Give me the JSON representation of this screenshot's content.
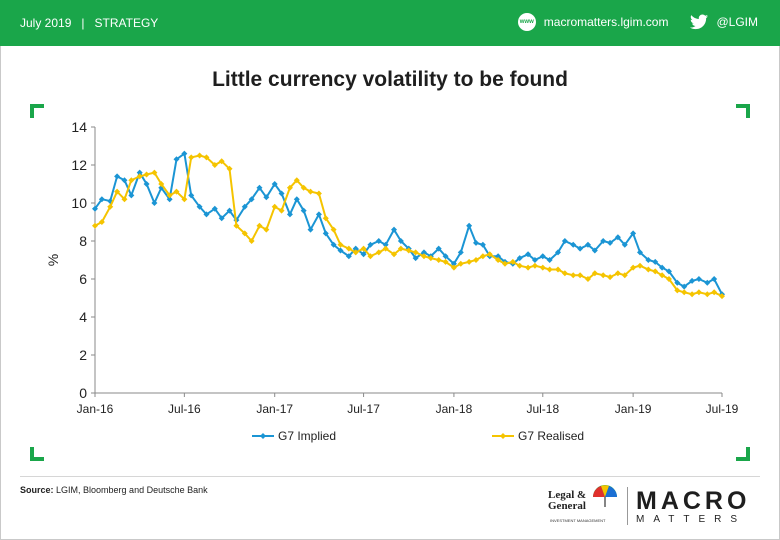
{
  "header": {
    "date": "July 2019",
    "section": "STRATEGY",
    "website": "macromatters.lgim.com",
    "twitter": "@LGIM",
    "www_icon_text": "www",
    "color": "#1aa64a"
  },
  "footer": {
    "source_label": "Source:",
    "source_text": "LGIM, Bloomberg and Deutsche Bank",
    "lg_line1": "Legal &",
    "lg_line2": "General",
    "lg_sub": "INVESTMENT MANAGEMENT",
    "brand_macro": "MACRO",
    "brand_matters": "MATTERS"
  },
  "chart_data": {
    "type": "line",
    "title": "Little currency volatility to be found",
    "xlabel": "",
    "ylabel": "%",
    "ylim": [
      0,
      14
    ],
    "yticks": [
      0,
      2,
      4,
      6,
      8,
      10,
      12,
      14
    ],
    "xticks": [
      "Jan-16",
      "Jul-16",
      "Jan-17",
      "Jul-17",
      "Jan-18",
      "Jul-18",
      "Jan-19",
      "Jul-19"
    ],
    "xrange": [
      "2016-01",
      "2019-07"
    ],
    "grid": false,
    "legend_position": "bottom",
    "series": [
      {
        "name": "G7 Implied",
        "color": "#1b95d4",
        "points": [
          [
            "2016-01-01",
            9.7
          ],
          [
            "2016-01-15",
            10.2
          ],
          [
            "2016-02-01",
            10.1
          ],
          [
            "2016-02-15",
            11.4
          ],
          [
            "2016-03-01",
            11.2
          ],
          [
            "2016-03-15",
            10.4
          ],
          [
            "2016-04-01",
            11.6
          ],
          [
            "2016-04-15",
            11.0
          ],
          [
            "2016-05-01",
            10.0
          ],
          [
            "2016-05-15",
            10.8
          ],
          [
            "2016-06-01",
            10.2
          ],
          [
            "2016-06-15",
            12.3
          ],
          [
            "2016-07-01",
            12.6
          ],
          [
            "2016-07-15",
            10.4
          ],
          [
            "2016-08-01",
            9.8
          ],
          [
            "2016-08-15",
            9.4
          ],
          [
            "2016-09-01",
            9.7
          ],
          [
            "2016-09-15",
            9.2
          ],
          [
            "2016-10-01",
            9.6
          ],
          [
            "2016-10-15",
            9.1
          ],
          [
            "2016-11-01",
            9.8
          ],
          [
            "2016-11-15",
            10.2
          ],
          [
            "2016-12-01",
            10.8
          ],
          [
            "2016-12-15",
            10.3
          ],
          [
            "2017-01-01",
            11.0
          ],
          [
            "2017-01-15",
            10.5
          ],
          [
            "2017-02-01",
            9.4
          ],
          [
            "2017-02-15",
            10.2
          ],
          [
            "2017-03-01",
            9.6
          ],
          [
            "2017-03-15",
            8.6
          ],
          [
            "2017-04-01",
            9.4
          ],
          [
            "2017-04-15",
            8.4
          ],
          [
            "2017-05-01",
            7.8
          ],
          [
            "2017-05-15",
            7.5
          ],
          [
            "2017-06-01",
            7.2
          ],
          [
            "2017-06-15",
            7.6
          ],
          [
            "2017-07-01",
            7.3
          ],
          [
            "2017-07-15",
            7.8
          ],
          [
            "2017-08-01",
            8.0
          ],
          [
            "2017-08-15",
            7.8
          ],
          [
            "2017-09-01",
            8.6
          ],
          [
            "2017-09-15",
            8.0
          ],
          [
            "2017-10-01",
            7.6
          ],
          [
            "2017-10-15",
            7.1
          ],
          [
            "2017-11-01",
            7.4
          ],
          [
            "2017-11-15",
            7.2
          ],
          [
            "2017-12-01",
            7.6
          ],
          [
            "2017-12-15",
            7.2
          ],
          [
            "2018-01-01",
            6.8
          ],
          [
            "2018-01-15",
            7.4
          ],
          [
            "2018-02-01",
            8.8
          ],
          [
            "2018-02-15",
            7.9
          ],
          [
            "2018-03-01",
            7.8
          ],
          [
            "2018-03-15",
            7.2
          ],
          [
            "2018-04-01",
            7.2
          ],
          [
            "2018-04-15",
            6.9
          ],
          [
            "2018-05-01",
            6.8
          ],
          [
            "2018-05-15",
            7.1
          ],
          [
            "2018-06-01",
            7.3
          ],
          [
            "2018-06-15",
            7.0
          ],
          [
            "2018-07-01",
            7.2
          ],
          [
            "2018-07-15",
            7.0
          ],
          [
            "2018-08-01",
            7.4
          ],
          [
            "2018-08-15",
            8.0
          ],
          [
            "2018-09-01",
            7.8
          ],
          [
            "2018-09-15",
            7.6
          ],
          [
            "2018-10-01",
            7.8
          ],
          [
            "2018-10-15",
            7.5
          ],
          [
            "2018-11-01",
            8.0
          ],
          [
            "2018-11-15",
            7.9
          ],
          [
            "2018-12-01",
            8.2
          ],
          [
            "2018-12-15",
            7.8
          ],
          [
            "2019-01-01",
            8.4
          ],
          [
            "2019-01-15",
            7.4
          ],
          [
            "2019-02-01",
            7.0
          ],
          [
            "2019-02-15",
            6.9
          ],
          [
            "2019-03-01",
            6.6
          ],
          [
            "2019-03-15",
            6.4
          ],
          [
            "2019-04-01",
            5.8
          ],
          [
            "2019-04-15",
            5.6
          ],
          [
            "2019-05-01",
            5.9
          ],
          [
            "2019-05-15",
            6.0
          ],
          [
            "2019-06-01",
            5.8
          ],
          [
            "2019-06-15",
            6.0
          ],
          [
            "2019-07-01",
            5.2
          ]
        ]
      },
      {
        "name": "G7 Realised",
        "color": "#f5c400",
        "points": [
          [
            "2016-01-01",
            8.8
          ],
          [
            "2016-01-15",
            9.0
          ],
          [
            "2016-02-01",
            9.8
          ],
          [
            "2016-02-15",
            10.6
          ],
          [
            "2016-03-01",
            10.2
          ],
          [
            "2016-03-15",
            11.2
          ],
          [
            "2016-04-01",
            11.4
          ],
          [
            "2016-04-15",
            11.5
          ],
          [
            "2016-05-01",
            11.6
          ],
          [
            "2016-05-15",
            11.0
          ],
          [
            "2016-06-01",
            10.4
          ],
          [
            "2016-06-15",
            10.6
          ],
          [
            "2016-07-01",
            10.2
          ],
          [
            "2016-07-15",
            12.4
          ],
          [
            "2016-08-01",
            12.5
          ],
          [
            "2016-08-15",
            12.4
          ],
          [
            "2016-09-01",
            12.0
          ],
          [
            "2016-09-15",
            12.2
          ],
          [
            "2016-10-01",
            11.8
          ],
          [
            "2016-10-15",
            8.8
          ],
          [
            "2016-11-01",
            8.4
          ],
          [
            "2016-11-15",
            8.0
          ],
          [
            "2016-12-01",
            8.8
          ],
          [
            "2016-12-15",
            8.6
          ],
          [
            "2017-01-01",
            9.8
          ],
          [
            "2017-01-15",
            9.6
          ],
          [
            "2017-02-01",
            10.8
          ],
          [
            "2017-02-15",
            11.2
          ],
          [
            "2017-03-01",
            10.8
          ],
          [
            "2017-03-15",
            10.6
          ],
          [
            "2017-04-01",
            10.5
          ],
          [
            "2017-04-15",
            9.2
          ],
          [
            "2017-05-01",
            8.6
          ],
          [
            "2017-05-15",
            7.8
          ],
          [
            "2017-06-01",
            7.6
          ],
          [
            "2017-06-15",
            7.4
          ],
          [
            "2017-07-01",
            7.6
          ],
          [
            "2017-07-15",
            7.2
          ],
          [
            "2017-08-01",
            7.4
          ],
          [
            "2017-08-15",
            7.6
          ],
          [
            "2017-09-01",
            7.3
          ],
          [
            "2017-09-15",
            7.6
          ],
          [
            "2017-10-01",
            7.5
          ],
          [
            "2017-10-15",
            7.4
          ],
          [
            "2017-11-01",
            7.2
          ],
          [
            "2017-11-15",
            7.1
          ],
          [
            "2017-12-01",
            7.0
          ],
          [
            "2017-12-15",
            6.9
          ],
          [
            "2018-01-01",
            6.6
          ],
          [
            "2018-01-15",
            6.8
          ],
          [
            "2018-02-01",
            6.9
          ],
          [
            "2018-02-15",
            7.0
          ],
          [
            "2018-03-01",
            7.2
          ],
          [
            "2018-03-15",
            7.3
          ],
          [
            "2018-04-01",
            7.0
          ],
          [
            "2018-04-15",
            6.8
          ],
          [
            "2018-05-01",
            6.9
          ],
          [
            "2018-05-15",
            6.7
          ],
          [
            "2018-06-01",
            6.6
          ],
          [
            "2018-06-15",
            6.7
          ],
          [
            "2018-07-01",
            6.6
          ],
          [
            "2018-07-15",
            6.5
          ],
          [
            "2018-08-01",
            6.5
          ],
          [
            "2018-08-15",
            6.3
          ],
          [
            "2018-09-01",
            6.2
          ],
          [
            "2018-09-15",
            6.2
          ],
          [
            "2018-10-01",
            6.0
          ],
          [
            "2018-10-15",
            6.3
          ],
          [
            "2018-11-01",
            6.2
          ],
          [
            "2018-11-15",
            6.1
          ],
          [
            "2018-12-01",
            6.3
          ],
          [
            "2018-12-15",
            6.2
          ],
          [
            "2019-01-01",
            6.6
          ],
          [
            "2019-01-15",
            6.7
          ],
          [
            "2019-02-01",
            6.5
          ],
          [
            "2019-02-15",
            6.4
          ],
          [
            "2019-03-01",
            6.2
          ],
          [
            "2019-03-15",
            6.0
          ],
          [
            "2019-04-01",
            5.4
          ],
          [
            "2019-04-15",
            5.3
          ],
          [
            "2019-05-01",
            5.2
          ],
          [
            "2019-05-15",
            5.3
          ],
          [
            "2019-06-01",
            5.2
          ],
          [
            "2019-06-15",
            5.3
          ],
          [
            "2019-07-01",
            5.1
          ]
        ]
      }
    ]
  }
}
